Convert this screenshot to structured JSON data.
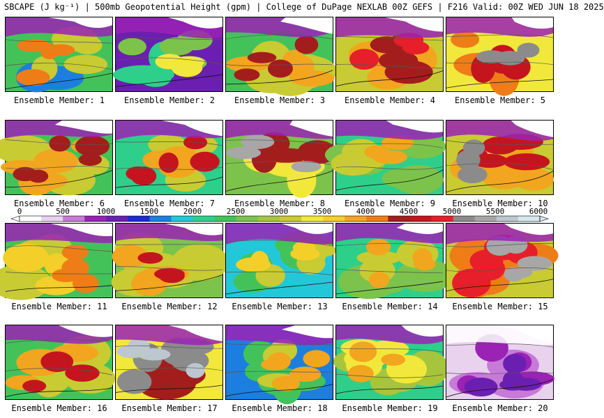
{
  "header": {
    "title": "SBCAPE (J kg⁻¹) | 500mb Geopotential Height (gpm) | College of DuPage NEXLAB 00Z GEFS | F216 Valid: 00Z WED JUN 18 2025"
  },
  "colorbar": {
    "labels": [
      "0",
      "500",
      "1000",
      "1500",
      "2000",
      "2500",
      "3000",
      "3500",
      "4000",
      "4500",
      "5000",
      "5500",
      "6000"
    ],
    "colors": [
      "#ffffff",
      "#e8d2ee",
      "#c77ad8",
      "#9a22b5",
      "#6b1fb0",
      "#1d2ad6",
      "#1c7fe0",
      "#22c8d8",
      "#2ecf8a",
      "#43c25a",
      "#7cc34b",
      "#a7c53c",
      "#c9cb32",
      "#f2e83c",
      "#f4cf2a",
      "#f2a51f",
      "#ee7d18",
      "#a41d1d",
      "#c4151e",
      "#e61f2a",
      "#8b8b8b",
      "#a7a7a7",
      "#bdc7cf",
      "#d4e6ee"
    ]
  },
  "members": [
    {
      "label": "Ensemble Member: 1"
    },
    {
      "label": "Ensemble Member: 2"
    },
    {
      "label": "Ensemble Member: 3"
    },
    {
      "label": "Ensemble Member: 4"
    },
    {
      "label": "Ensemble Member: 5"
    },
    {
      "label": "Ensemble Member: 6"
    },
    {
      "label": "Ensemble Member: 7"
    },
    {
      "label": "Ensemble Member: 8"
    },
    {
      "label": "Ensemble Member: 9"
    },
    {
      "label": "Ensemble Member: 10"
    },
    {
      "label": "Ensemble Member: 11"
    },
    {
      "label": "Ensemble Member: 12"
    },
    {
      "label": "Ensemble Member: 13"
    },
    {
      "label": "Ensemble Member: 14"
    },
    {
      "label": "Ensemble Member: 15"
    },
    {
      "label": "Ensemble Member: 16"
    },
    {
      "label": "Ensemble Member: 17"
    },
    {
      "label": "Ensemble Member: 18"
    },
    {
      "label": "Ensemble Member: 19"
    },
    {
      "label": "Ensemble Member: 20"
    }
  ]
}
